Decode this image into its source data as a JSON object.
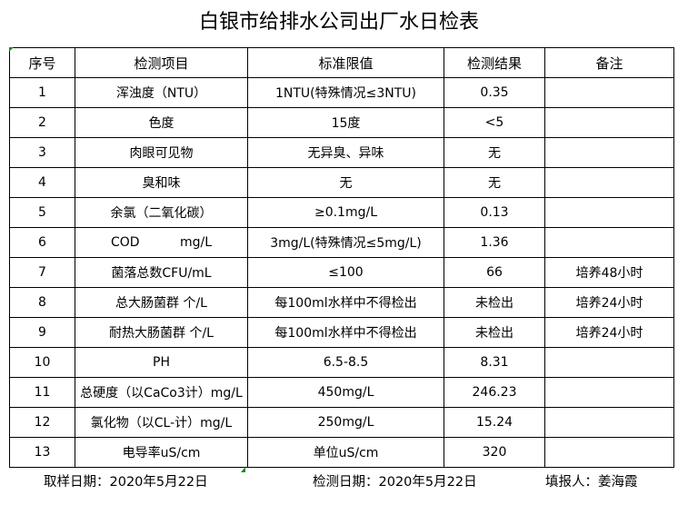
{
  "title": "白银市给排水公司出厂水日检表",
  "columns": [
    "序号",
    "检测项目",
    "标准限值",
    "检测结果",
    "备注"
  ],
  "rows": [
    [
      "1",
      "浑浊度（NTU）",
      "1NTU(特殊情况≤3NTU)",
      "0.35",
      ""
    ],
    [
      "2",
      "色度",
      "15度",
      "<5",
      ""
    ],
    [
      "3",
      "肉眼可见物",
      "无异臭、异味",
      "无",
      ""
    ],
    [
      "4",
      "臭和味",
      "无",
      "无",
      ""
    ],
    [
      "5",
      "余氯（二氧化碳）",
      "≥0.1mg/L",
      "0.13",
      ""
    ],
    [
      "6",
      "COD          mg/L",
      "3mg/L(特殊情况≤5mg/L)",
      "1.36",
      ""
    ],
    [
      "7",
      "菌落总数CFU/mL",
      "≤100",
      "66",
      "培养48小时"
    ],
    [
      "8",
      "总大肠菌群 个/L",
      "每100ml水样中不得检出",
      "未检出",
      "培养24小时"
    ],
    [
      "9",
      "耐热大肠菌群 个/L",
      "每100ml水样中不得检出",
      "未检出",
      "培养24小时"
    ],
    [
      "10",
      "PH",
      "6.5-8.5",
      "8.31",
      ""
    ],
    [
      "11",
      "总硬度（以CaCo3计）mg/L",
      "450mg/L",
      "246.23",
      ""
    ],
    [
      "12",
      "氯化物（以CL-计）mg/L",
      "250mg/L",
      "15.24",
      ""
    ],
    [
      "13",
      "电导率uS/cm",
      "单位uS/cm",
      "320",
      ""
    ]
  ],
  "footer": {
    "sampling_date": "取样日期：2020年5月22日",
    "test_date": "检测日期：2020年5月22日",
    "reporter": "填报人：姜海霞"
  }
}
